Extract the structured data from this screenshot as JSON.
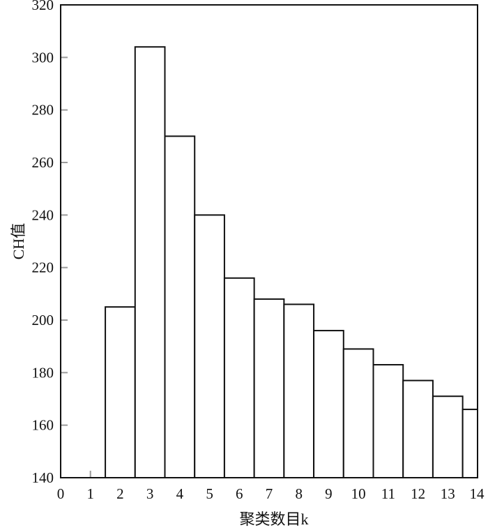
{
  "chart_data": {
    "type": "bar",
    "xlabel": "聚类数目k",
    "ylabel": "CH值",
    "xlim": [
      0,
      14
    ],
    "ylim": [
      140,
      320
    ],
    "x_ticks": [
      0,
      1,
      2,
      3,
      4,
      5,
      6,
      7,
      8,
      9,
      10,
      11,
      12,
      13,
      14
    ],
    "y_ticks": [
      140,
      160,
      180,
      200,
      220,
      240,
      260,
      280,
      300,
      320
    ],
    "categories": [
      2,
      3,
      4,
      5,
      6,
      7,
      8,
      9,
      10,
      11,
      12,
      13,
      14
    ],
    "values": [
      205,
      304,
      270,
      240,
      216,
      208,
      206,
      196,
      189,
      183,
      177,
      171,
      166
    ],
    "grid": false,
    "legend": "none"
  }
}
